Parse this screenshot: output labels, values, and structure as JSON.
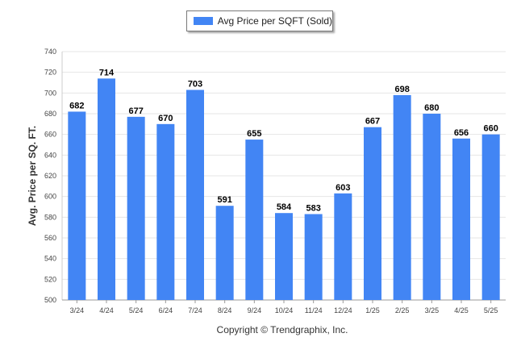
{
  "chart_data": {
    "type": "bar",
    "categories": [
      "3/24",
      "4/24",
      "5/24",
      "6/24",
      "7/24",
      "8/24",
      "9/24",
      "10/24",
      "11/24",
      "12/24",
      "1/25",
      "2/25",
      "3/25",
      "4/25",
      "5/25"
    ],
    "series": [
      {
        "name": "Avg Price per SQFT (Sold)",
        "values": [
          682,
          714,
          677,
          670,
          703,
          591,
          655,
          584,
          583,
          603,
          667,
          698,
          680,
          656,
          660
        ]
      }
    ],
    "title": "",
    "xlabel": "",
    "ylabel": "Avg. Price per SQ. FT.",
    "ylim": [
      500,
      740
    ],
    "yticks": [
      500,
      520,
      540,
      560,
      580,
      600,
      620,
      640,
      660,
      680,
      700,
      720,
      740
    ],
    "data_labels": true,
    "grid": true,
    "legend_position": "top-center",
    "bar_color": "#4285f4"
  },
  "legend": {
    "label": "Avg Price per SQFT (Sold)"
  },
  "footer": {
    "copyright": "Copyright © Trendgraphix, Inc."
  }
}
